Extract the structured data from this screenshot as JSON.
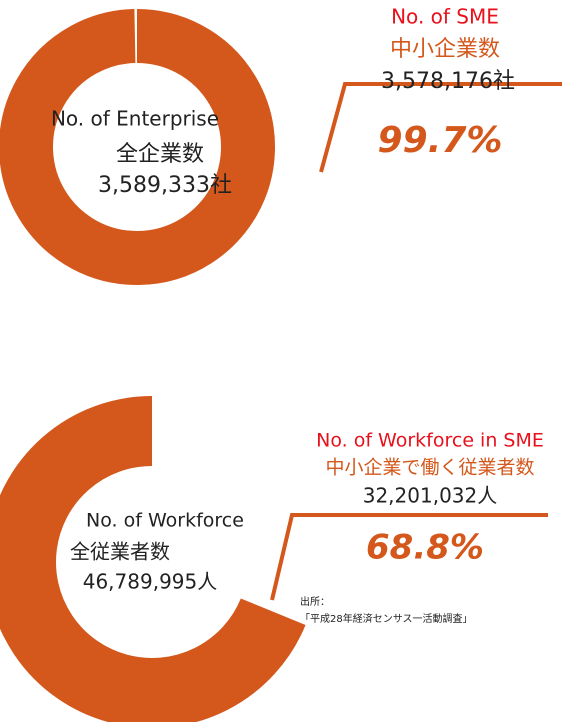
{
  "chart_data": [
    {
      "type": "donut",
      "color": "#d4581c",
      "values": [
        99.7
      ],
      "value_labels": [
        "99.7%"
      ],
      "center_label": [
        "No. of Enterprise",
        "全企業数",
        "3,589,333社"
      ],
      "callout": [
        "No. of SME",
        "中小企業数",
        "3,578,176社"
      ]
    },
    {
      "type": "donut",
      "color": "#d4581c",
      "values": [
        68.8
      ],
      "value_labels": [
        "68.8%"
      ],
      "center_label": [
        "No. of Workforce",
        "全従業者数",
        "46,789,995人"
      ],
      "callout": [
        "No. of Workforce in SME",
        "中小企業で働く従業者数",
        "32,201,032人"
      ],
      "source": [
        "出所：",
        "「平成28年経済センサス一活動調査」"
      ]
    }
  ]
}
